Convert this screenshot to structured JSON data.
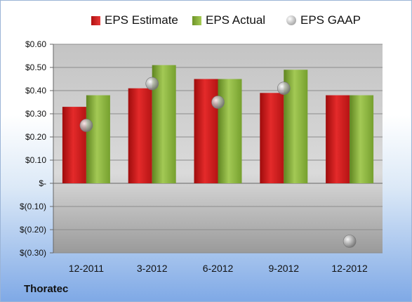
{
  "company": "Thoratec",
  "colors": {
    "estimate": "#d91e1e",
    "actual": "#8ab13a",
    "gaap": "#a0a0a0"
  },
  "chart_data": {
    "type": "bar",
    "title": "",
    "xlabel": "",
    "ylabel": "",
    "categories": [
      "12-2011",
      "3-2012",
      "6-2012",
      "9-2012",
      "12-2012"
    ],
    "series": [
      {
        "name": "EPS Estimate",
        "kind": "bar",
        "values": [
          0.33,
          0.41,
          0.45,
          0.39,
          0.38
        ]
      },
      {
        "name": "EPS Actual",
        "kind": "bar",
        "values": [
          0.38,
          0.51,
          0.45,
          0.49,
          0.38
        ]
      },
      {
        "name": "EPS GAAP",
        "kind": "scatter",
        "values": [
          0.25,
          0.43,
          0.35,
          0.41,
          -0.25
        ]
      }
    ],
    "ylim": [
      -0.3,
      0.6
    ],
    "yticks": [
      0.6,
      0.5,
      0.4,
      0.3,
      0.2,
      0.1,
      0,
      -0.1,
      -0.2,
      -0.3
    ],
    "ytick_labels": [
      "$0.60",
      "$0.50",
      "$0.40",
      "$0.30",
      "$0.20",
      "$0.10",
      "$-",
      "$(0.10)",
      "$(0.20)",
      "$(0.30)"
    ],
    "grid": true,
    "legend": "top"
  }
}
